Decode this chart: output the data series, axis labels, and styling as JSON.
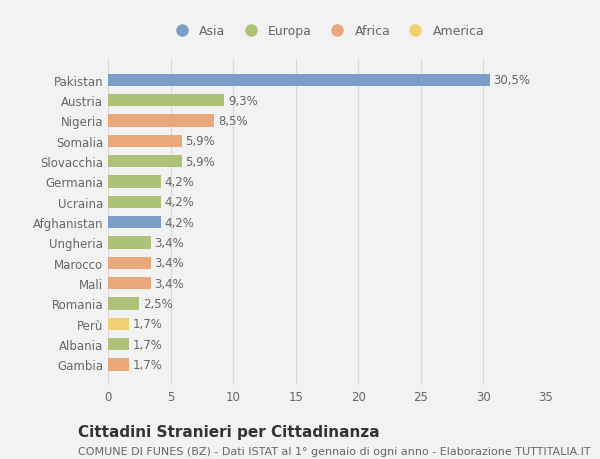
{
  "categories": [
    "Pakistan",
    "Austria",
    "Nigeria",
    "Somalia",
    "Slovacchia",
    "Germania",
    "Ucraina",
    "Afghanistan",
    "Ungheria",
    "Marocco",
    "Mali",
    "Romania",
    "Perù",
    "Albania",
    "Gambia"
  ],
  "values": [
    30.5,
    9.3,
    8.5,
    5.9,
    5.9,
    4.2,
    4.2,
    4.2,
    3.4,
    3.4,
    3.4,
    2.5,
    1.7,
    1.7,
    1.7
  ],
  "labels": [
    "30,5%",
    "9,3%",
    "8,5%",
    "5,9%",
    "5,9%",
    "4,2%",
    "4,2%",
    "4,2%",
    "3,4%",
    "3,4%",
    "3,4%",
    "2,5%",
    "1,7%",
    "1,7%",
    "1,7%"
  ],
  "colors": [
    "#7b9ec9",
    "#adc178",
    "#e8a87c",
    "#e8a87c",
    "#adc178",
    "#adc178",
    "#adc178",
    "#7b9ec9",
    "#adc178",
    "#e8a87c",
    "#e8a87c",
    "#adc178",
    "#f0d070",
    "#adc178",
    "#e8a87c"
  ],
  "legend_labels": [
    "Asia",
    "Europa",
    "Africa",
    "America"
  ],
  "legend_colors": [
    "#7b9ec9",
    "#adc178",
    "#e8a87c",
    "#f0d070"
  ],
  "title": "Cittadini Stranieri per Cittadinanza",
  "subtitle": "COMUNE DI FUNES (BZ) - Dati ISTAT al 1° gennaio di ogni anno - Elaborazione TUTTITALIA.IT",
  "xlim": [
    0,
    35
  ],
  "xticks": [
    0,
    5,
    10,
    15,
    20,
    25,
    30,
    35
  ],
  "background_color": "#f2f2f2",
  "grid_color": "#d8d8d8",
  "text_color": "#666666",
  "label_fontsize": 8.5,
  "title_fontsize": 11,
  "subtitle_fontsize": 8
}
